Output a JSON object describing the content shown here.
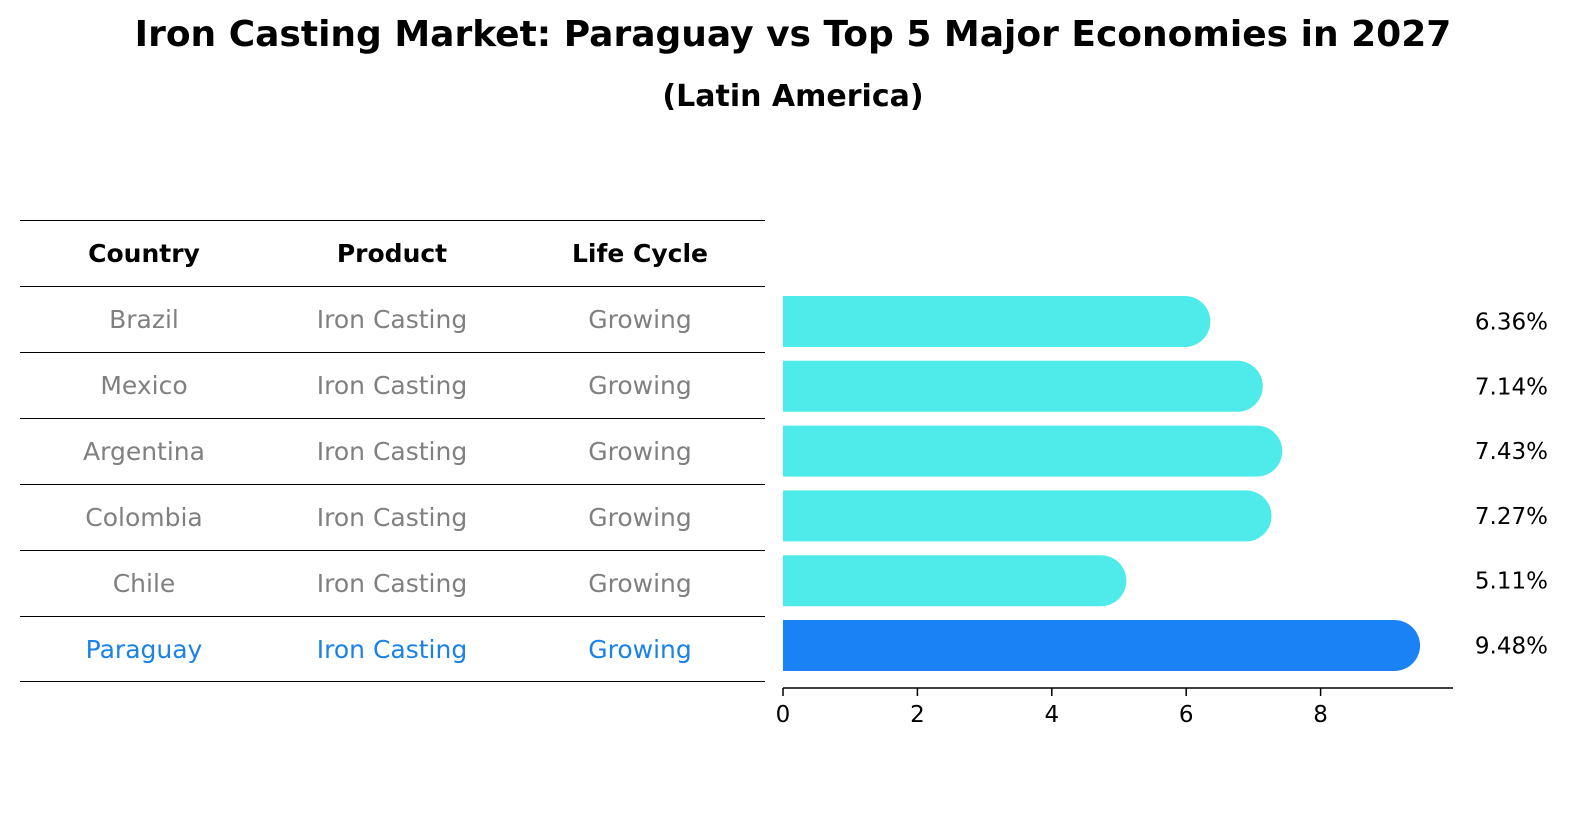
{
  "title": "Iron Casting Market: Paraguay vs Top 5 Major Economies in 2027",
  "subtitle": "(Latin America)",
  "table": {
    "headers": [
      "Country",
      "Product",
      "Life Cycle"
    ],
    "rows": [
      {
        "country": "Brazil",
        "product": "Iron Casting",
        "life_cycle": "Growing"
      },
      {
        "country": "Mexico",
        "product": "Iron Casting",
        "life_cycle": "Growing"
      },
      {
        "country": "Argentina",
        "product": "Iron Casting",
        "life_cycle": "Growing"
      },
      {
        "country": "Colombia",
        "product": "Iron Casting",
        "life_cycle": "Growing"
      },
      {
        "country": "Chile",
        "product": "Iron Casting",
        "life_cycle": "Growing"
      },
      {
        "country": "Paraguay",
        "product": "Iron Casting",
        "life_cycle": "Growing"
      }
    ]
  },
  "colors": {
    "bar_default": "#4eebea",
    "bar_highlight": "#1a82f5",
    "text_muted": "#808080",
    "text_highlight": "#1a82e8"
  },
  "chart_data": {
    "type": "bar",
    "orientation": "horizontal",
    "categories": [
      "Brazil",
      "Mexico",
      "Argentina",
      "Colombia",
      "Chile",
      "Paraguay"
    ],
    "values": [
      6.36,
      7.14,
      7.43,
      7.27,
      5.11,
      9.48
    ],
    "data_labels": [
      "6.36%",
      "7.14%",
      "7.43%",
      "7.27%",
      "5.11%",
      "9.48%"
    ],
    "highlight": "Paraguay",
    "xlim": [
      0,
      10
    ],
    "xticks": [
      0,
      2,
      4,
      6,
      8
    ],
    "grid": false
  }
}
